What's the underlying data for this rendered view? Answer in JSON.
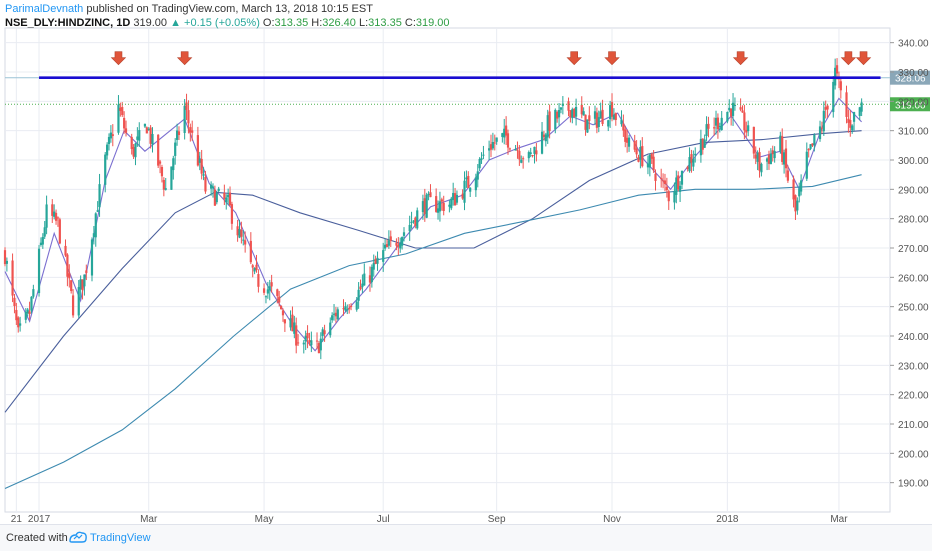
{
  "header": {
    "author": "ParimalDevnath",
    "published": "published on TradingView.com, March 13, 2018 10:15 EST",
    "symbol": "NSE_DLY:HINDZINC, 1D",
    "price": "319.00",
    "change": "▲ +0.15 (+0.05%)",
    "o_label": "O:",
    "o_value": "313.35",
    "h_label": "H:",
    "h_value": "326.40",
    "l_label": "L:",
    "l_value": "313.35",
    "c_label": "C:",
    "c_value": "319.00"
  },
  "footer": {
    "created_with": "Created with",
    "brand": "TradingView"
  },
  "colors": {
    "up": "#26a69a",
    "down": "#ef5350",
    "bg": "#ffffff",
    "grid": "#e9ecf2",
    "resistance": "#1a0dd1",
    "marker": "#e0553a",
    "ma_short": "#7b6fd0",
    "ma_mid": "#4a5f9c",
    "ma_long": "#3d8ab0",
    "price_tag": "#4caf50",
    "level_tag": "#8aa7b8"
  },
  "chart_data": {
    "type": "candlestick",
    "symbol": "NSE_DLY:HINDZINC",
    "interval": "1D",
    "ylim": [
      180,
      345
    ],
    "y_ticks": [
      190,
      200,
      210,
      220,
      230,
      240,
      250,
      260,
      270,
      280,
      290,
      300,
      310,
      320,
      330,
      340
    ],
    "y_tick_labels": [
      "190.00",
      "200.00",
      "210.00",
      "220.00",
      "230.00",
      "240.00",
      "250.00",
      "260.00",
      "270.00",
      "280.00",
      "290.00",
      "300.00",
      "310.00",
      "320.00",
      "330.00",
      "340.00"
    ],
    "x_range": [
      "2016-12-15",
      "2018-03-28"
    ],
    "x_ticks": [
      {
        "date": "2016-12-21",
        "label": "21"
      },
      {
        "date": "2017-01-02",
        "label": "2017"
      },
      {
        "date": "2017-03-01",
        "label": "Mar"
      },
      {
        "date": "2017-05-01",
        "label": "May"
      },
      {
        "date": "2017-07-03",
        "label": "Jul"
      },
      {
        "date": "2017-09-01",
        "label": "Sep"
      },
      {
        "date": "2017-11-01",
        "label": "Nov"
      },
      {
        "date": "2018-01-01",
        "label": "2018"
      },
      {
        "date": "2018-03-01",
        "label": "Mar"
      }
    ],
    "price_anchors": [
      [
        "2016-12-15",
        268
      ],
      [
        "2016-12-22",
        240
      ],
      [
        "2016-12-28",
        248
      ],
      [
        "2017-01-06",
        282
      ],
      [
        "2017-01-12",
        278
      ],
      [
        "2017-01-20",
        250
      ],
      [
        "2017-01-26",
        260
      ],
      [
        "2017-02-06",
        300
      ],
      [
        "2017-02-13",
        318
      ],
      [
        "2017-02-20",
        302
      ],
      [
        "2017-02-28",
        312
      ],
      [
        "2017-03-10",
        290
      ],
      [
        "2017-03-20",
        318
      ],
      [
        "2017-03-31",
        290
      ],
      [
        "2017-04-12",
        285
      ],
      [
        "2017-04-26",
        260
      ],
      [
        "2017-05-05",
        255
      ],
      [
        "2017-05-18",
        240
      ],
      [
        "2017-05-28",
        235
      ],
      [
        "2017-06-08",
        248
      ],
      [
        "2017-06-20",
        255
      ],
      [
        "2017-07-03",
        268
      ],
      [
        "2017-07-13",
        275
      ],
      [
        "2017-07-25",
        285
      ],
      [
        "2017-08-07",
        285
      ],
      [
        "2017-08-17",
        292
      ],
      [
        "2017-08-28",
        305
      ],
      [
        "2017-09-06",
        308
      ],
      [
        "2017-09-18",
        300
      ],
      [
        "2017-09-28",
        312
      ],
      [
        "2017-10-10",
        318
      ],
      [
        "2017-10-20",
        312
      ],
      [
        "2017-11-01",
        318
      ],
      [
        "2017-11-10",
        305
      ],
      [
        "2017-11-22",
        298
      ],
      [
        "2017-12-01",
        288
      ],
      [
        "2017-12-12",
        300
      ],
      [
        "2017-12-22",
        310
      ],
      [
        "2018-01-03",
        318
      ],
      [
        "2018-01-10",
        312
      ],
      [
        "2018-01-18",
        298
      ],
      [
        "2018-01-29",
        305
      ],
      [
        "2018-02-06",
        282
      ],
      [
        "2018-02-12",
        300
      ],
      [
        "2018-02-20",
        312
      ],
      [
        "2018-02-27",
        330
      ],
      [
        "2018-03-06",
        312
      ],
      [
        "2018-03-13",
        319
      ]
    ],
    "moving_averages": {
      "short": [
        [
          "2016-12-15",
          262
        ],
        [
          "2016-12-28",
          245
        ],
        [
          "2017-01-10",
          275
        ],
        [
          "2017-01-24",
          252
        ],
        [
          "2017-02-06",
          293
        ],
        [
          "2017-02-16",
          310
        ],
        [
          "2017-02-27",
          303
        ],
        [
          "2017-03-20",
          314
        ],
        [
          "2017-04-02",
          292
        ],
        [
          "2017-04-16",
          282
        ],
        [
          "2017-05-02",
          258
        ],
        [
          "2017-05-16",
          244
        ],
        [
          "2017-05-28",
          235
        ],
        [
          "2017-06-10",
          246
        ],
        [
          "2017-06-24",
          256
        ],
        [
          "2017-07-10",
          270
        ],
        [
          "2017-07-28",
          284
        ],
        [
          "2017-08-14",
          288
        ],
        [
          "2017-08-28",
          300
        ],
        [
          "2017-09-12",
          304
        ],
        [
          "2017-09-26",
          307
        ],
        [
          "2017-10-10",
          315
        ],
        [
          "2017-10-22",
          312
        ],
        [
          "2017-11-04",
          316
        ],
        [
          "2017-11-18",
          300
        ],
        [
          "2017-12-02",
          290
        ],
        [
          "2017-12-16",
          302
        ],
        [
          "2018-01-03",
          315
        ],
        [
          "2018-01-18",
          301
        ],
        [
          "2018-01-29",
          303
        ],
        [
          "2018-02-08",
          290
        ],
        [
          "2018-02-20",
          311
        ],
        [
          "2018-03-01",
          321
        ],
        [
          "2018-03-13",
          313
        ]
      ],
      "mid": [
        [
          "2016-12-15",
          214
        ],
        [
          "2017-01-15",
          240
        ],
        [
          "2017-02-15",
          263
        ],
        [
          "2017-03-15",
          282
        ],
        [
          "2017-04-05",
          289
        ],
        [
          "2017-04-25",
          288
        ],
        [
          "2017-05-20",
          282
        ],
        [
          "2017-06-20",
          276
        ],
        [
          "2017-07-20",
          270
        ],
        [
          "2017-08-20",
          270
        ],
        [
          "2017-09-20",
          280
        ],
        [
          "2017-10-20",
          293
        ],
        [
          "2017-11-20",
          302
        ],
        [
          "2017-12-20",
          306
        ],
        [
          "2018-01-20",
          307
        ],
        [
          "2018-02-20",
          309
        ],
        [
          "2018-03-13",
          310
        ]
      ],
      "long": [
        [
          "2016-12-15",
          188
        ],
        [
          "2017-01-15",
          197
        ],
        [
          "2017-02-15",
          208
        ],
        [
          "2017-03-15",
          222
        ],
        [
          "2017-04-15",
          240
        ],
        [
          "2017-05-15",
          256
        ],
        [
          "2017-06-15",
          264
        ],
        [
          "2017-07-15",
          268
        ],
        [
          "2017-08-15",
          275
        ],
        [
          "2017-09-15",
          279
        ],
        [
          "2017-10-15",
          283
        ],
        [
          "2017-11-15",
          288
        ],
        [
          "2017-12-15",
          290
        ],
        [
          "2018-01-15",
          290
        ],
        [
          "2018-02-15",
          291
        ],
        [
          "2018-03-13",
          295
        ]
      ]
    },
    "resistance": {
      "value": 328.06,
      "label": "328.06",
      "x_start": "2017-01-02",
      "x_end": "2018-03-23"
    },
    "current_price": {
      "value": 319.0,
      "label": "319.00"
    },
    "arrows": [
      "2017-02-13",
      "2017-03-20",
      "2017-10-12",
      "2017-11-01",
      "2018-01-08",
      "2018-03-06",
      "2018-03-14"
    ]
  }
}
